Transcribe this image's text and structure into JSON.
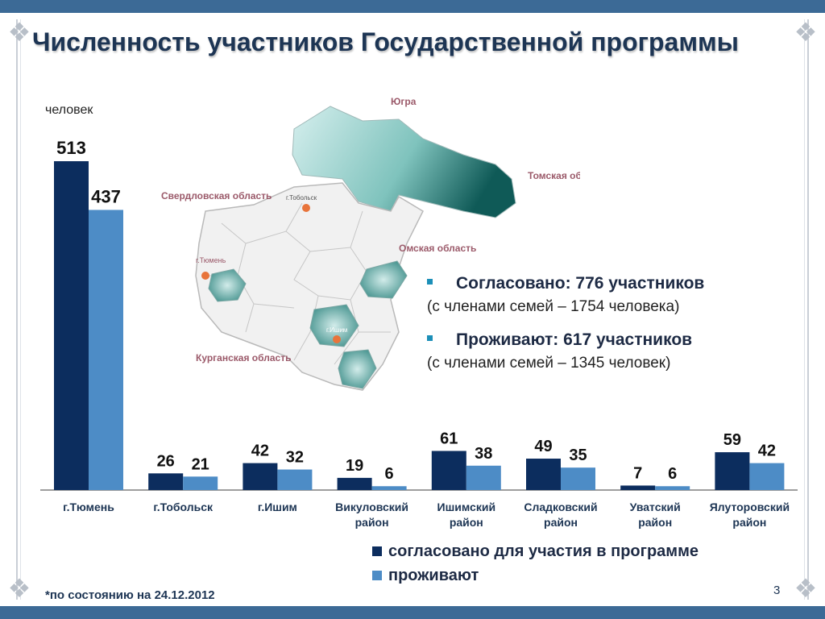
{
  "title": "Численность участников Государственной программы",
  "unit_label": "человек",
  "info": {
    "agreed_headline": "Согласовано:  776 участников",
    "agreed_detail": "(с членами семей – 1754 человека)",
    "living_headline": "Проживают:  617 участников",
    "living_detail": "(с членами семей – 1345 человек)"
  },
  "map": {
    "regions": [
      "Югра",
      "Томская область",
      "Свердловская область",
      "Омская область",
      "Курганская область"
    ],
    "cities": [
      "г.Тобольск",
      "г.Тюмень",
      "г.Ишим"
    ],
    "districts": [
      "Увaтский р-н",
      "Ялуторовский р-н",
      "Викуловский р-н",
      "Ишимский р-н",
      "Сладковский р-н"
    ],
    "colors": {
      "land": "#f1f1f1",
      "border": "#b9b9b9",
      "highlight": "#5aa7a0",
      "highlight_dark": "#0f5a57",
      "region_text": "#9b5a6a"
    }
  },
  "chart_data": {
    "type": "bar",
    "categories": [
      "г.Тюмень",
      "г.Тобольск",
      "г.Ишим",
      "Викуловский район",
      "Ишимский район",
      "Сладковский район",
      "Уватский район",
      "Ялуторовский район"
    ],
    "series": [
      {
        "name": "согласовано для участия в программе",
        "values": [
          513,
          26,
          42,
          19,
          61,
          49,
          7,
          59
        ],
        "color": "#0c2d5e"
      },
      {
        "name": "проживают",
        "values": [
          437,
          21,
          32,
          6,
          38,
          35,
          6,
          42
        ],
        "color": "#4d8cc6"
      }
    ],
    "title": "",
    "xlabel": "",
    "ylabel": "человек",
    "legend_position": "bottom",
    "grid": false
  },
  "footnote": "*по состоянию на 24.12.2012",
  "page_number": "3"
}
